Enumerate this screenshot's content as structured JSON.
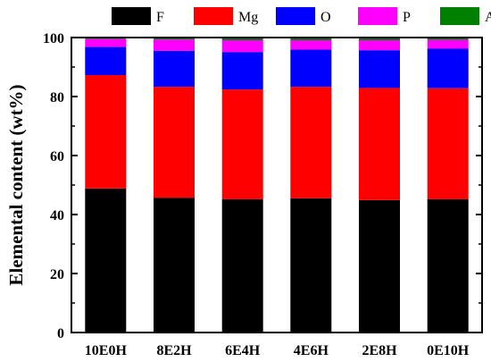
{
  "chart_data": {
    "type": "bar",
    "stacked": true,
    "title": "",
    "xlabel": "",
    "ylabel": "Elemental content (wt%)",
    "ylim": [
      0,
      100
    ],
    "yticks": [
      0,
      20,
      40,
      60,
      80,
      100
    ],
    "grid": false,
    "legend_position": "top",
    "categories": [
      "10E0H",
      "8E2H",
      "6E4H",
      "4E6H",
      "2E8H",
      "0E10H"
    ],
    "series": [
      {
        "name": "F",
        "color": "#000000",
        "values": [
          48.8,
          45.7,
          45.2,
          45.5,
          44.9,
          45.2
        ]
      },
      {
        "name": "Mg",
        "color": "#ff0000",
        "values": [
          38.5,
          37.6,
          37.2,
          37.8,
          38.0,
          37.6
        ]
      },
      {
        "name": "O",
        "color": "#0000ff",
        "values": [
          9.5,
          12.2,
          12.7,
          12.6,
          12.8,
          13.4
        ]
      },
      {
        "name": "P",
        "color": "#ff00ff",
        "values": [
          2.7,
          3.8,
          4.0,
          3.2,
          3.4,
          3.0
        ]
      },
      {
        "name": "Al",
        "color": "#008000",
        "values": [
          0.5,
          0.7,
          0.9,
          0.9,
          0.9,
          0.8
        ]
      }
    ]
  }
}
